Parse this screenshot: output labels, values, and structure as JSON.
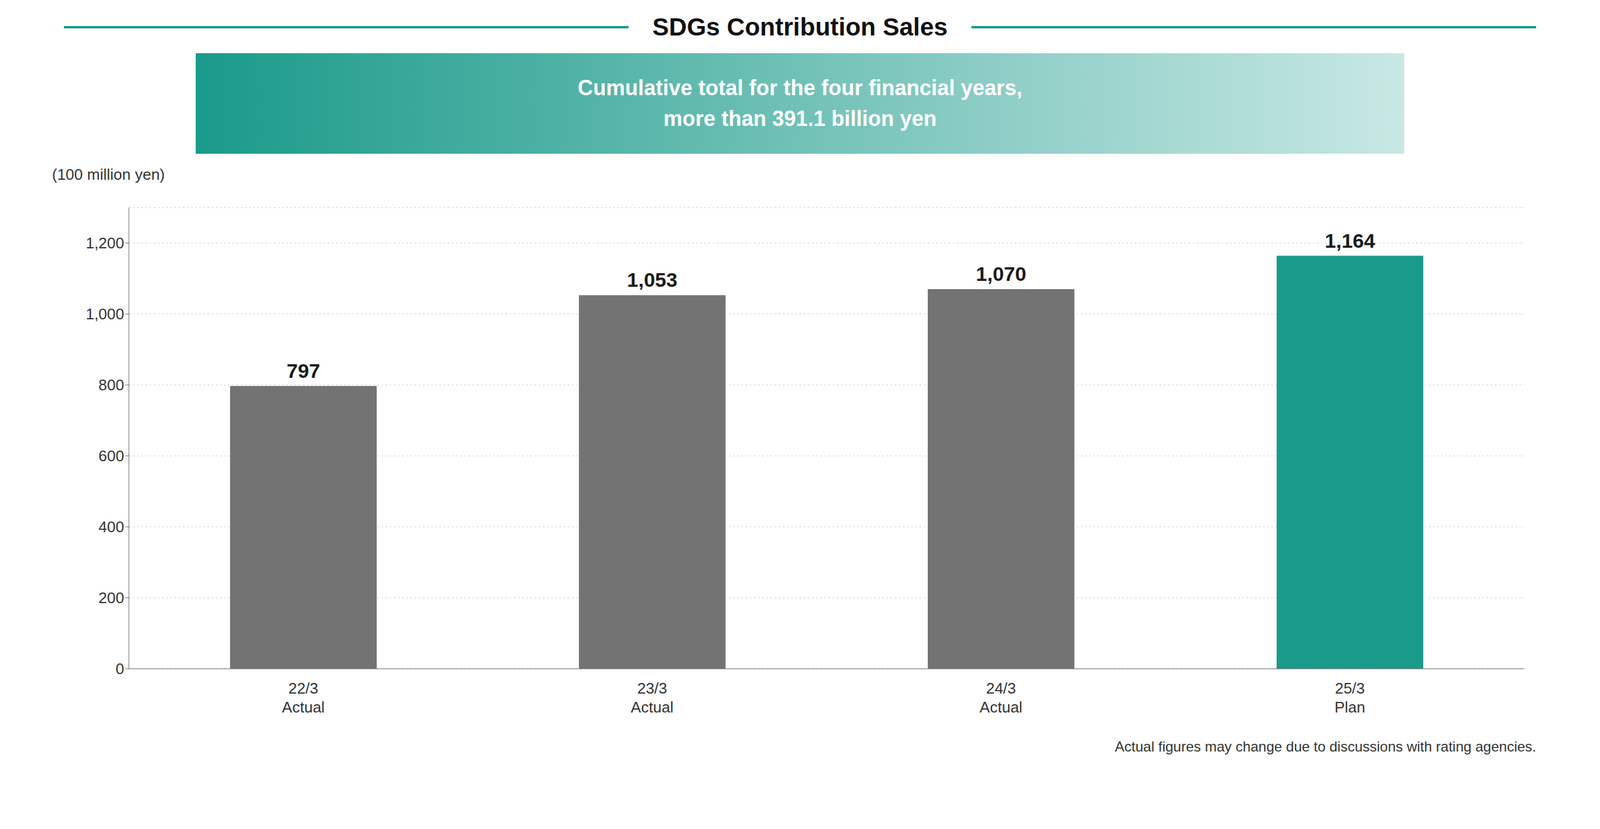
{
  "chart_data": {
    "type": "bar",
    "title": "SDGs Contribution Sales",
    "subtitle": "Cumulative total for the four financial years,\nmore than 391.1 billion yen",
    "y_label": "(100 million yen)",
    "footnote": "Actual figures may change due to discussions with rating agencies.",
    "categories": [
      "22/3\nActual",
      "23/3\nActual",
      "24/3\nActual",
      "25/3\nPlan"
    ],
    "values": [
      797,
      1053,
      1070,
      1164
    ],
    "value_labels": [
      "797",
      "1,053",
      "1,070",
      "1,164"
    ],
    "data_labels": true,
    "colors": [
      "#737373",
      "#737373",
      "#737373",
      "#1a9a8a"
    ],
    "ylim": [
      0,
      1300
    ],
    "yticks": [
      0,
      200,
      400,
      600,
      800,
      {
        "value": 1000,
        "label": "1,000"
      },
      {
        "value": 1200,
        "label": "1,200"
      }
    ],
    "grid": true
  }
}
